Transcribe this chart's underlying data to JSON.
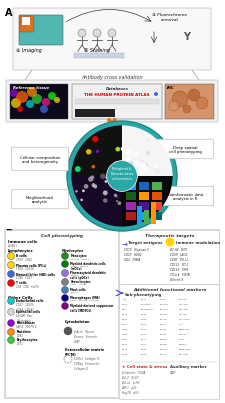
{
  "panel_a_label": "A",
  "panel_b_label": "B",
  "bg_color": "#ffffff",
  "figure_width": 2.21,
  "figure_height": 4.0,
  "dpi": 100,
  "arrow_orange": "#E07020",
  "teal_circle": "#2AA8A8",
  "teal_dark": "#1A8888",
  "antibody_text": "Antibody cross validation",
  "cell_comp_text": "Cellular composition\nand heterogeneity",
  "deep_spatial_text": "Deep spatial\ncell phenotyping",
  "neighborhood_text": "Neighborhood\nanalysis",
  "bioinformatic_text": "Bioinformatic data\nanalysis in R"
}
